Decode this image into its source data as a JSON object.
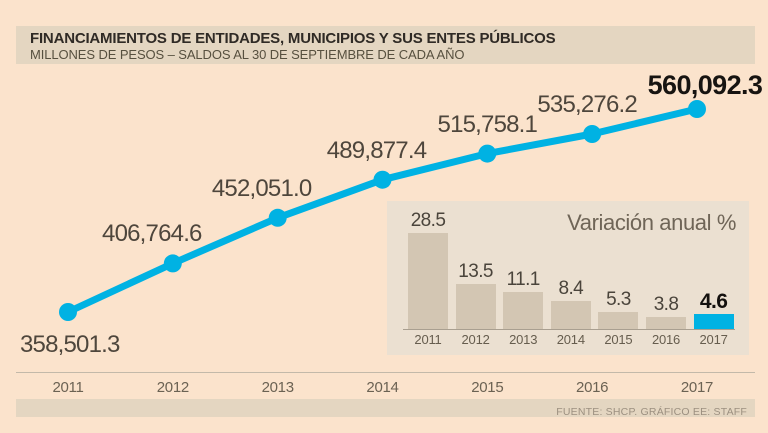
{
  "header": {
    "title": "FINANCIAMIENTOS DE ENTIDADES, MUNICIPIOS Y SUS ENTES PÚBLICOS",
    "subtitle": "MILLONES DE PESOS – SALDOS AL 30 DE SEPTIEMBRE DE CADA AÑO"
  },
  "footer": {
    "source": "FUENTE: SHCP. GRÁFICO EE: STAFF"
  },
  "colors": {
    "background": "#fbe3cc",
    "panel": "#e4d6c1",
    "inset_background": "#ebe0d1",
    "line": "#00b2e3",
    "bar": "#d3c6b3",
    "bar_highlight": "#00b2e3",
    "label": "#4e463c",
    "label_emphasis": "#171411"
  },
  "chart_data": [
    {
      "type": "line",
      "title": "FINANCIAMIENTOS DE ENTIDADES, MUNICIPIOS Y SUS ENTES PÚBLICOS",
      "subtitle": "MILLONES DE PESOS – SALDOS AL 30 DE SEPTIEMBRE DE CADA AÑO",
      "categories": [
        "2011",
        "2012",
        "2013",
        "2014",
        "2015",
        "2016",
        "2017"
      ],
      "values": [
        358501.3,
        406764.6,
        452051.0,
        489877.4,
        515758.1,
        535276.2,
        560092.3
      ],
      "value_labels": [
        "358,501.3",
        "406,764.6",
        "452,051.0",
        "489,877.4",
        "515,758.1",
        "535,276.2",
        "560,092.3"
      ],
      "emphasized_index": 6,
      "ylim": [
        350000,
        570000
      ],
      "grid": false,
      "legend": "none"
    },
    {
      "type": "bar",
      "title": "Variación anual %",
      "categories": [
        "2011",
        "2012",
        "2013",
        "2014",
        "2015",
        "2016",
        "2017"
      ],
      "values": [
        28.5,
        13.5,
        11.1,
        8.4,
        5.3,
        3.8,
        4.6
      ],
      "value_labels": [
        "28.5",
        "13.5",
        "11.1",
        "8.4",
        "5.3",
        "3.8",
        "4.6"
      ],
      "highlight_index": 6,
      "ylim": [
        0,
        30
      ],
      "grid": false,
      "legend": "none"
    }
  ]
}
